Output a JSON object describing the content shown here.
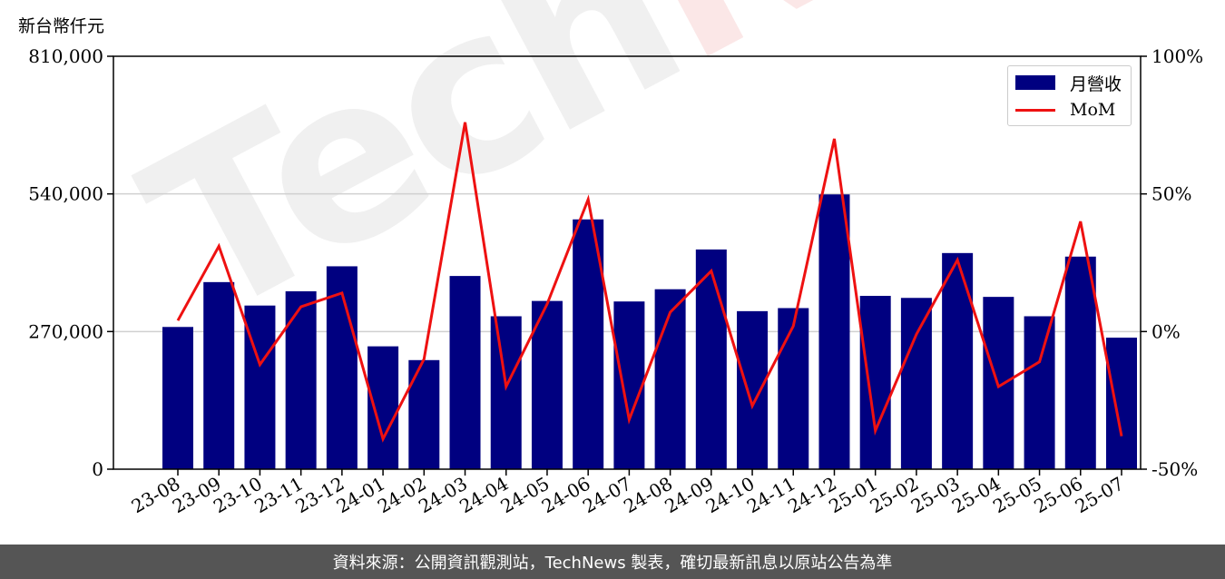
{
  "chart_data": {
    "type": "bar",
    "unit_label": "新台幣仟元",
    "categories": [
      "23-08",
      "23-09",
      "23-10",
      "23-11",
      "23-12",
      "24-01",
      "24-02",
      "24-03",
      "24-04",
      "24-05",
      "24-06",
      "24-07",
      "24-08",
      "24-09",
      "24-10",
      "24-11",
      "24-12",
      "25-01",
      "25-02",
      "25-03",
      "25-04",
      "25-05",
      "25-06",
      "25-07"
    ],
    "series": [
      {
        "name": "月營收",
        "axis": "left",
        "kind": "bar",
        "color": "#000080",
        "values": [
          279000,
          367000,
          321000,
          349000,
          398000,
          241000,
          214000,
          379000,
          300000,
          330000,
          490000,
          329000,
          353000,
          431000,
          310000,
          316000,
          539000,
          340000,
          336000,
          424000,
          338000,
          300000,
          417000,
          258000
        ]
      },
      {
        "name": "MoM",
        "axis": "right",
        "kind": "line",
        "color": "#ee1111",
        "values": [
          4,
          31,
          -12,
          9,
          14,
          -39,
          -10,
          76,
          -20,
          10,
          48,
          -32,
          7,
          22,
          -27,
          2,
          70,
          -36,
          -1,
          26,
          -20,
          -11,
          40,
          -38
        ]
      }
    ],
    "y_left": {
      "min": 0,
      "max": 810000,
      "ticks": [
        "0",
        "270,000",
        "540,000",
        "810,000"
      ],
      "tick_values": [
        0,
        270000,
        540000,
        810000
      ]
    },
    "y_right": {
      "min": -50,
      "max": 100,
      "ticks": [
        "-50%",
        "0%",
        "50%",
        "100%"
      ],
      "tick_values": [
        -50,
        0,
        50,
        100
      ]
    },
    "grid": "horizontal",
    "legend_placement": "top-right"
  },
  "watermark": {
    "lead": "Tech",
    "tail": "News"
  },
  "footer_text": "資料來源：公開資訊觀測站，TechNews 製表，確切最新訊息以原站公告為準"
}
